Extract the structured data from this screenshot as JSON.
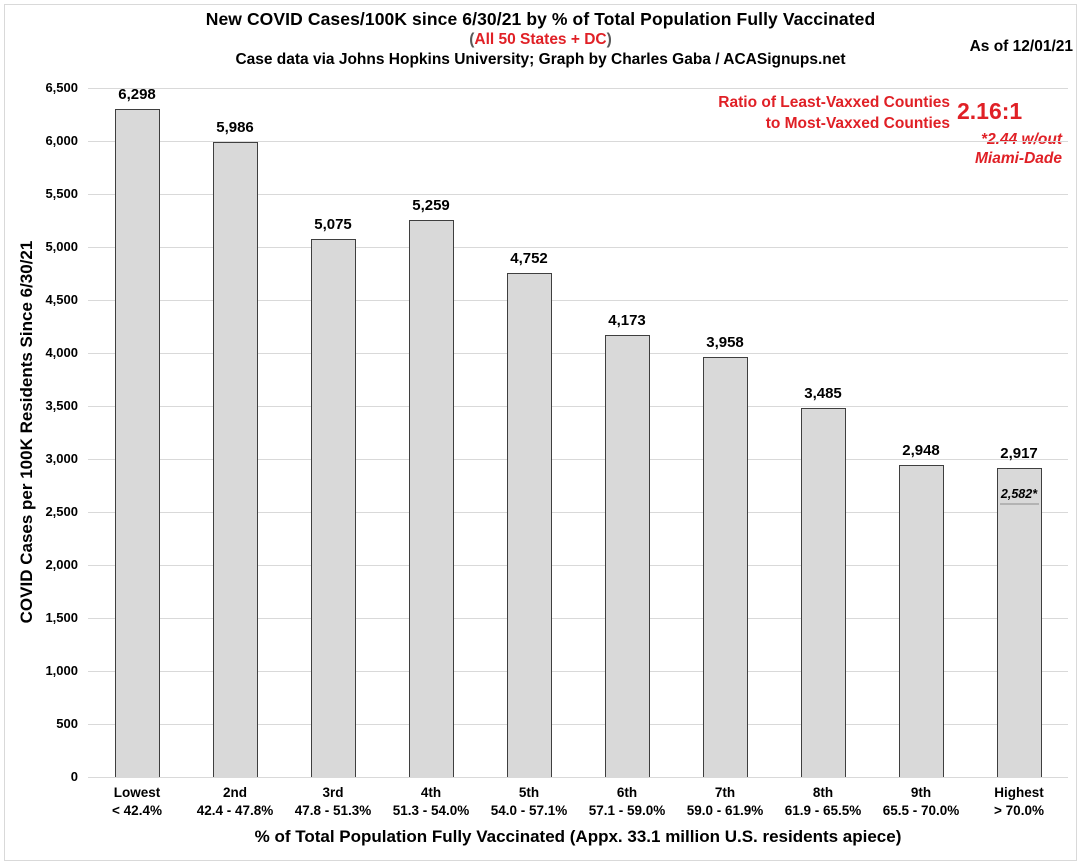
{
  "header": {
    "title": "New COVID Cases/100K since 6/30/21 by % of Total Population Fully Vaccinated",
    "subtitle_paren_open": "(",
    "subtitle": "All 50 States + DC",
    "subtitle_paren_close": ")",
    "credit": "Case data via Johns Hopkins University; Graph by Charles Gaba / ACASignups.net",
    "as_of": "As of 12/01/21"
  },
  "annotation": {
    "ratio_line1": "Ratio of Least-Vaxxed Counties",
    "ratio_line2": "to Most-Vaxxed Counties",
    "ratio_value": "2.16:1",
    "note_line1": "*2.44 w/out",
    "note_line2": "Miami-Dade"
  },
  "colors": {
    "accent_red": "#e02026",
    "bar_fill": "#d9d9d9",
    "bar_border": "#3f3f3f",
    "gridline": "#d9d9d9",
    "marker_gray": "#b3b3b3",
    "paren_gray": "#595959"
  },
  "chart_data": {
    "type": "bar",
    "title": "New COVID Cases/100K since 6/30/21 by % of Total Population Fully Vaccinated",
    "subtitle": "(All 50 States + DC)",
    "categories": [
      {
        "tier": "Lowest",
        "range": "< 42.4%"
      },
      {
        "tier": "2nd",
        "range": "42.4 - 47.8%"
      },
      {
        "tier": "3rd",
        "range": "47.8 - 51.3%"
      },
      {
        "tier": "4th",
        "range": "51.3 - 54.0%"
      },
      {
        "tier": "5th",
        "range": "54.0 - 57.1%"
      },
      {
        "tier": "6th",
        "range": "57.1 - 59.0%"
      },
      {
        "tier": "7th",
        "range": "59.0 - 61.9%"
      },
      {
        "tier": "8th",
        "range": "61.9 - 65.5%"
      },
      {
        "tier": "9th",
        "range": "65.5 - 70.0%"
      },
      {
        "tier": "Highest",
        "range": "> 70.0%"
      }
    ],
    "values": [
      6298,
      5986,
      5075,
      5259,
      4752,
      4173,
      3958,
      3485,
      2948,
      2917
    ],
    "bar_labels": [
      "6,298",
      "5,986",
      "5,075",
      "5,259",
      "4,752",
      "4,173",
      "3,958",
      "3,485",
      "2,948",
      "2,917"
    ],
    "special_marker": {
      "bar_index": 9,
      "value": 2582,
      "label": "2,582*"
    },
    "ylabel": "COVID Cases per 100K Residents Since 6/30/21",
    "xlabel": "% of Total Population Fully Vaccinated (Appx. 33.1 million U.S. residents apiece)",
    "ylim": [
      0,
      6500
    ],
    "ytick_step": 500,
    "grid": true,
    "legend": "none"
  }
}
